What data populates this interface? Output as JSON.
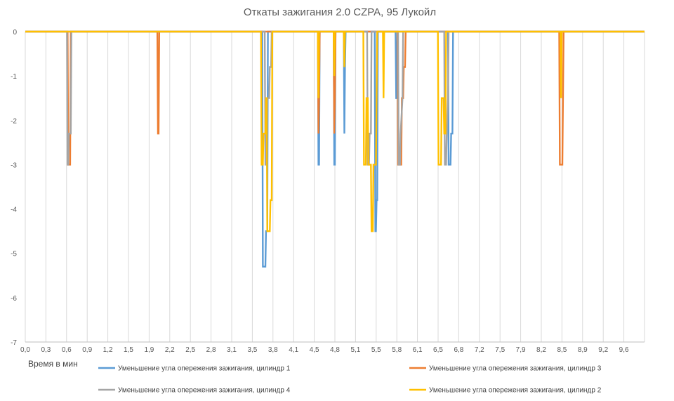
{
  "chart_data": {
    "type": "line",
    "title": "Откаты зажигания 2.0 CZPA, 95 Лукойл",
    "xlabel": "Время в мин",
    "ylabel": "",
    "xlim": [
      0.0,
      9.8
    ],
    "ylim": [
      -7,
      0
    ],
    "grid": true,
    "legend_position": "bottom",
    "x_ticks": [
      "0,0",
      "0,3",
      "0,6",
      "0,9",
      "1,2",
      "1,5",
      "1,9",
      "2,2",
      "2,5",
      "2,8",
      "3,1",
      "3,5",
      "3,8",
      "4,1",
      "4,5",
      "4,8",
      "5,1",
      "5,5",
      "5,8",
      "6,1",
      "6,5",
      "6,8",
      "7,2",
      "7,5",
      "7,9",
      "8,2",
      "8,5",
      "8,9",
      "9,2",
      "9,6"
    ],
    "y_ticks": [
      "0",
      "-1",
      "-2",
      "-3",
      "-4",
      "-5",
      "-6",
      "-7"
    ],
    "series": [
      {
        "name": "Уменьшение угла опережения зажигания, цилиндр 1",
        "color": "#5B9BD5",
        "x": [
          0,
          3.75,
          3.76,
          3.8,
          3.81,
          3.83,
          3.84,
          4.63,
          4.64,
          4.65,
          4.66,
          4.88,
          4.89,
          4.9,
          4.91,
          5.04,
          5.05,
          5.06,
          5.07,
          5.53,
          5.54,
          5.55,
          5.56,
          5.57,
          5.58,
          5.86,
          5.87,
          5.88,
          5.89,
          6.69,
          6.7,
          6.73,
          6.74,
          6.76,
          6.77,
          9.8
        ],
        "y": [
          0,
          0,
          -5.3,
          -5.3,
          -4.5,
          -4.5,
          0,
          0,
          -3,
          -3,
          0,
          0,
          -3,
          -3,
          0,
          0,
          -2.3,
          -0.8,
          0,
          0,
          -4.5,
          -4.5,
          -3.8,
          -3.8,
          0,
          0,
          -1.5,
          -1.5,
          0,
          0,
          -3,
          -3,
          -2.3,
          -2.3,
          0,
          0
        ]
      },
      {
        "name": "Уменьшение угла опережения зажигания, цилиндр 3",
        "color": "#ED7D31",
        "x": [
          0,
          0.67,
          0.68,
          0.71,
          0.72,
          2.09,
          2.1,
          2.11,
          2.12,
          4.63,
          4.64,
          4.65,
          4.66,
          4.88,
          4.89,
          4.9,
          4.91,
          5.89,
          5.9,
          5.95,
          5.96,
          5.98,
          5.99,
          6.01,
          6.02,
          6.04,
          6.05,
          8.45,
          8.46,
          8.5,
          8.51,
          8.52,
          9.8
        ],
        "y": [
          0,
          0,
          -3,
          -3,
          0,
          0,
          -2.3,
          -2.3,
          0,
          0,
          -2.3,
          -1.5,
          0,
          0,
          -2.3,
          -1.5,
          0,
          0,
          -3,
          -3,
          -1.5,
          -1.5,
          -0.8,
          -0.8,
          0,
          0,
          0,
          0,
          -3,
          -3,
          -1.5,
          0,
          0
        ]
      },
      {
        "name": "Уменьшение угла опережения зажигания, цилиндр 4",
        "color": "#A5A5A5",
        "x": [
          0,
          0.66,
          0.67,
          0.68,
          0.69,
          0.72,
          0.73,
          3.79,
          3.8,
          3.82,
          3.83,
          3.86,
          3.87,
          3.89,
          3.9,
          5.41,
          5.42,
          5.44,
          5.45,
          5.47,
          5.48,
          5.9,
          5.91,
          5.93,
          5.94,
          5.97,
          5.98,
          6.63,
          6.64,
          6.66,
          6.67,
          6.69,
          6.7,
          9.8
        ],
        "y": [
          0,
          0,
          -3,
          -3,
          -2.3,
          -2.3,
          0,
          0,
          -3,
          -3,
          -1.5,
          -1.5,
          -0.8,
          -0.8,
          0,
          0,
          -3,
          -3,
          -2.3,
          -2.3,
          0,
          0,
          -3,
          -3,
          -2.3,
          -1.5,
          0,
          0,
          -3,
          -3,
          -2.3,
          -1.5,
          0,
          0
        ]
      },
      {
        "name": "Уменьшение угла опережения зажигания, цилиндр 2",
        "color": "#FFC000",
        "x": [
          0,
          3.73,
          3.74,
          3.76,
          3.77,
          3.8,
          3.81,
          3.82,
          3.83,
          3.87,
          3.88,
          3.9,
          3.91,
          4.63,
          4.64,
          4.65,
          4.88,
          4.89,
          4.9,
          5.04,
          5.05,
          5.06,
          5.35,
          5.36,
          5.39,
          5.4,
          5.42,
          5.43,
          5.47,
          5.48,
          5.5,
          5.51,
          5.55,
          5.56,
          5.57,
          5.66,
          5.67,
          5.68,
          6.53,
          6.54,
          6.58,
          6.59,
          6.62,
          6.63,
          6.65,
          6.66,
          8.47,
          8.48,
          8.49,
          9.8
        ],
        "y": [
          0,
          0,
          -3,
          -3,
          -2.3,
          -2.3,
          -1.5,
          -1.5,
          -4.5,
          -4.5,
          -3.8,
          -3.8,
          0,
          0,
          -1.5,
          0,
          0,
          -1,
          0,
          0,
          -0.8,
          0,
          0,
          -3,
          -3,
          -1.5,
          -1.5,
          -3,
          -3,
          -4.5,
          -4.5,
          -3,
          -3,
          -1.5,
          0,
          0,
          -1.5,
          0,
          0,
          -3,
          -3,
          -1.5,
          -1.5,
          -2.3,
          -2.3,
          0,
          0,
          -1.5,
          0,
          0
        ]
      }
    ]
  }
}
